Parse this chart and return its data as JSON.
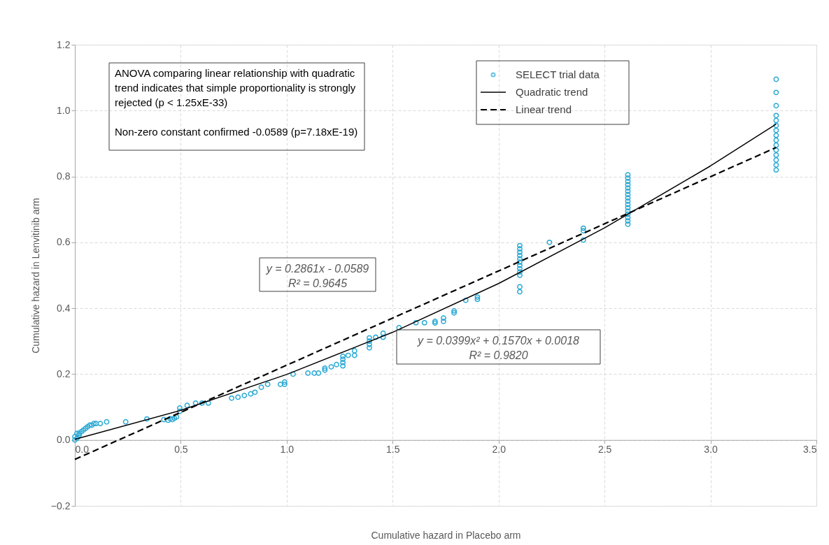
{
  "chart_data": {
    "type": "scatter",
    "xlabel": "Cumulative hazard in Placebo arm",
    "ylabel": "Cumulative hazard in  Lenvitinib arm",
    "xlim": [
      0,
      3.5
    ],
    "xticks": [
      {
        "value": 0,
        "label": "0.0"
      },
      0.5,
      {
        "value": 1,
        "label": "1.0"
      },
      1.5,
      {
        "value": 2,
        "label": "2.0"
      },
      2.5,
      {
        "value": 3,
        "label": "3.0"
      },
      3.5
    ],
    "ylim": [
      -0.2,
      1.2
    ],
    "yticks": [
      -0.2,
      {
        "value": 0,
        "label": "0.0"
      },
      0.2,
      0.4,
      0.6,
      0.8,
      {
        "value": 1,
        "label": "1.0"
      },
      1.2
    ],
    "grid": true,
    "legend": "top right",
    "marker": "circle",
    "annotations": [
      "ANOVA  comparing linear relationship with quadratic\ntrend indicates that simple proportionality is strongly\nrejected (p < 1.25xE-33)\n\nNon-zero constant confirmed -0.0589 (p=7.18xE-19)",
      "y = 0.2861x - 0.0589\nR² = 0.9645",
      "y = 0.0399x² + 0.1570x + 0.0018\nR² = 0.9820"
    ],
    "series": [
      {
        "name": "SELECT trial data",
        "color": "#29a9d4",
        "x": [
          0.0,
          0.0,
          0.01,
          0.01,
          0.02,
          0.02,
          0.03,
          0.04,
          0.05,
          0.06,
          0.07,
          0.08,
          0.09,
          0.1,
          0.12,
          0.15,
          0.24,
          0.34,
          0.42,
          0.44,
          0.45,
          0.46,
          0.47,
          0.48,
          0.495,
          0.495,
          0.53,
          0.57,
          0.6,
          0.63,
          0.74,
          0.77,
          0.8,
          0.83,
          0.85,
          0.88,
          0.91,
          0.97,
          0.99,
          0.99,
          1.03,
          1.1,
          1.13,
          1.15,
          1.18,
          1.18,
          1.21,
          1.235,
          1.265,
          1.265,
          1.265,
          1.265,
          1.29,
          1.32,
          1.32,
          1.39,
          1.39,
          1.39,
          1.39,
          1.42,
          1.455,
          1.455,
          1.53,
          1.61,
          1.65,
          1.7,
          1.7,
          1.74,
          1.74,
          1.79,
          1.79,
          1.845,
          1.9,
          1.9,
          2.1,
          2.1,
          2.1,
          2.1,
          2.1,
          2.1,
          2.1,
          2.1,
          2.1,
          2.1,
          2.1,
          2.1,
          2.24,
          2.4,
          2.4,
          2.4,
          2.61,
          2.61,
          2.61,
          2.61,
          2.61,
          2.61,
          2.61,
          2.61,
          2.61,
          2.61,
          2.61,
          2.61,
          2.61,
          2.61,
          2.61,
          2.61,
          3.31,
          3.31,
          3.31,
          3.31,
          3.31,
          3.31,
          3.31,
          3.31,
          3.31,
          3.31,
          3.31,
          3.31,
          3.31,
          3.31,
          3.31
        ],
        "values": [
          0.0,
          0.01,
          0.005,
          0.02,
          0.015,
          0.02,
          0.025,
          0.03,
          0.035,
          0.04,
          0.045,
          0.045,
          0.05,
          0.05,
          0.05,
          0.055,
          0.055,
          0.064,
          0.062,
          0.06,
          0.065,
          0.062,
          0.066,
          0.07,
          0.087,
          0.097,
          0.105,
          0.112,
          0.112,
          0.112,
          0.127,
          0.13,
          0.135,
          0.14,
          0.145,
          0.16,
          0.169,
          0.169,
          0.169,
          0.176,
          0.2,
          0.203,
          0.203,
          0.203,
          0.212,
          0.218,
          0.222,
          0.229,
          0.225,
          0.235,
          0.245,
          0.254,
          0.257,
          0.257,
          0.271,
          0.28,
          0.29,
          0.3,
          0.31,
          0.312,
          0.312,
          0.324,
          0.341,
          0.356,
          0.356,
          0.355,
          0.36,
          0.36,
          0.37,
          0.386,
          0.392,
          0.424,
          0.427,
          0.434,
          0.45,
          0.465,
          0.5,
          0.51,
          0.52,
          0.53,
          0.54,
          0.55,
          0.56,
          0.57,
          0.58,
          0.59,
          0.6,
          0.607,
          0.635,
          0.643,
          0.655,
          0.665,
          0.675,
          0.685,
          0.695,
          0.705,
          0.715,
          0.725,
          0.735,
          0.745,
          0.755,
          0.765,
          0.775,
          0.785,
          0.795,
          0.805,
          0.82,
          0.835,
          0.85,
          0.865,
          0.88,
          0.895,
          0.91,
          0.925,
          0.94,
          0.955,
          0.97,
          0.985,
          1.015,
          1.055,
          1.095
        ]
      },
      {
        "name": "Quadratic trend",
        "type": "line",
        "marker": "none",
        "line_style": "solid",
        "color": "#000000",
        "x": [
          0,
          0.5,
          1.0,
          1.5,
          2.0,
          2.5,
          3.0,
          3.31
        ],
        "values": [
          0.002,
          0.09,
          0.199,
          0.327,
          0.475,
          0.644,
          0.832,
          0.959
        ]
      },
      {
        "name": "Linear trend",
        "type": "line",
        "marker": "none",
        "line_style": "dashed",
        "color": "#000000",
        "x": [
          0,
          3.31
        ],
        "values": [
          -0.059,
          0.888
        ]
      }
    ]
  }
}
